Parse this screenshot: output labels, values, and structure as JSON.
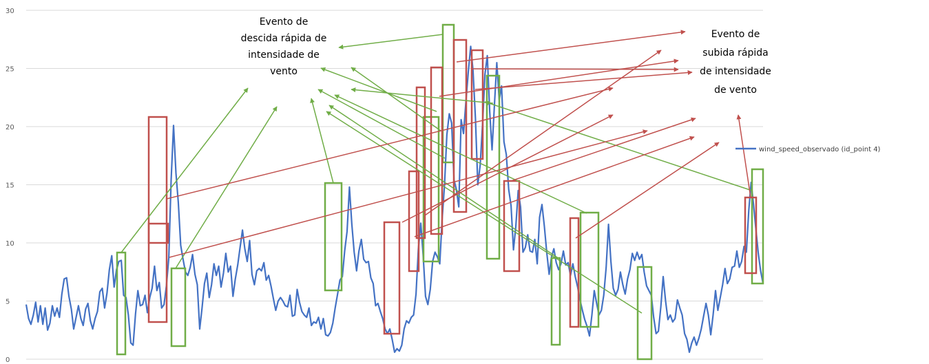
{
  "chart_data": {
    "type": "line",
    "title": "",
    "xlabel": "",
    "ylabel": "",
    "ylim": [
      0,
      30
    ],
    "y_ticks": [
      0,
      5,
      10,
      15,
      20,
      25,
      30
    ],
    "grid": "horizontal",
    "legend_position": "right",
    "series": [
      {
        "name": "wind_speed_observado (id_point 4)",
        "color": "#4472C4",
        "values": [
          4.7,
          3.5,
          3.0,
          3.8,
          4.9,
          3.2,
          4.6,
          3.0,
          4.4,
          2.5,
          3.1,
          4.6,
          3.7,
          4.4,
          3.6,
          5.6,
          6.9,
          7.0,
          5.4,
          4.3,
          2.6,
          3.6,
          4.6,
          3.5,
          2.9,
          4.3,
          4.8,
          3.3,
          2.6,
          3.5,
          4.1,
          5.8,
          6.1,
          4.4,
          5.7,
          7.7,
          8.9,
          6.2,
          7.7,
          8.4,
          8.5,
          5.5,
          5.3,
          3.8,
          1.4,
          1.2,
          3.9,
          5.9,
          4.6,
          4.7,
          5.5,
          4.0,
          5.3,
          6.1,
          8.0,
          5.9,
          6.6,
          4.4,
          4.7,
          6.3,
          8.7,
          15.4,
          20.1,
          16.0,
          13.5,
          9.8,
          8.6,
          7.5,
          7.2,
          7.9,
          9.0,
          7.3,
          6.4,
          2.6,
          4.4,
          6.5,
          7.4,
          5.3,
          6.4,
          8.2,
          7.2,
          8.0,
          6.2,
          7.4,
          9.1,
          7.5,
          8.0,
          5.4,
          6.9,
          8.1,
          9.6,
          11.1,
          9.5,
          8.4,
          10.2,
          7.3,
          6.4,
          7.6,
          7.8,
          7.6,
          8.3,
          6.8,
          7.2,
          6.3,
          5.2,
          4.2,
          5.0,
          5.3,
          5.0,
          4.6,
          4.5,
          5.5,
          3.7,
          3.8,
          6.0,
          4.9,
          4.1,
          3.8,
          3.6,
          4.4,
          2.9,
          3.2,
          3.1,
          3.6,
          2.6,
          3.5,
          2.1,
          2.0,
          2.3,
          3.1,
          4.4,
          5.6,
          6.8,
          7.1,
          9.3,
          11.0,
          14.8,
          11.6,
          9.2,
          7.6,
          9.3,
          10.3,
          8.6,
          8.3,
          8.4,
          7.0,
          6.5,
          4.6,
          4.8,
          4.1,
          3.5,
          2.6,
          2.2,
          2.6,
          1.7,
          0.6,
          0.9,
          0.7,
          1.2,
          2.6,
          3.3,
          3.1,
          3.6,
          3.8,
          5.6,
          9.5,
          11.7,
          9.0,
          5.4,
          4.7,
          6.0,
          8.4,
          9.2,
          8.8,
          8.2,
          12.0,
          15.0,
          19.3,
          21.1,
          20.3,
          15.4,
          14.6,
          13.1,
          20.6,
          19.4,
          22.1,
          24.7,
          26.9,
          24.8,
          20.7,
          15.0,
          16.7,
          20.2,
          24.5,
          26.1,
          21.3,
          18.0,
          21.9,
          25.5,
          22.3,
          23.5,
          18.7,
          17.6,
          14.6,
          13.2,
          9.4,
          11.4,
          14.5,
          13.1,
          9.2,
          9.6,
          10.7,
          9.3,
          9.2,
          10.3,
          8.2,
          12.2,
          13.3,
          11.4,
          9.2,
          7.3,
          8.8,
          9.5,
          8.3,
          7.7,
          8.2,
          9.3,
          8.1,
          8.3,
          7.2,
          8.2,
          7.1,
          6.2,
          5.1,
          4.2,
          3.4,
          2.8,
          2.0,
          3.8,
          5.9,
          4.8,
          3.8,
          4.2,
          5.5,
          7.9,
          11.6,
          8.4,
          6.1,
          5.5,
          6.0,
          7.5,
          6.4,
          5.6,
          6.9,
          7.7,
          9.1,
          8.5,
          9.2,
          8.6,
          9.0,
          7.5,
          6.3,
          5.9,
          5.5,
          3.6,
          2.2,
          2.4,
          4.5,
          7.1,
          5.0,
          3.4,
          3.8,
          3.2,
          3.5,
          5.1,
          4.4,
          3.8,
          2.2,
          1.7,
          0.6,
          1.4,
          1.9,
          1.2,
          1.8,
          2.6,
          3.7,
          4.8,
          3.8,
          2.1,
          3.8,
          5.9,
          4.2,
          5.3,
          6.4,
          7.8,
          6.5,
          6.9,
          7.9,
          8.0,
          9.3,
          7.9,
          8.4,
          9.7,
          9.2,
          12.8,
          15.2,
          13.3,
          11.2,
          9.1,
          7.6,
          6.5
        ]
      }
    ],
    "annotations": [
      {
        "text_lines": [
          "Evento de",
          "descida rápida de",
          "intensidade de",
          "vento"
        ],
        "color": "#70AD47"
      },
      {
        "text_lines": [
          "Evento de",
          "subida rápida",
          "de intensidade",
          "de vento"
        ],
        "color": "#C0504D"
      }
    ]
  }
}
